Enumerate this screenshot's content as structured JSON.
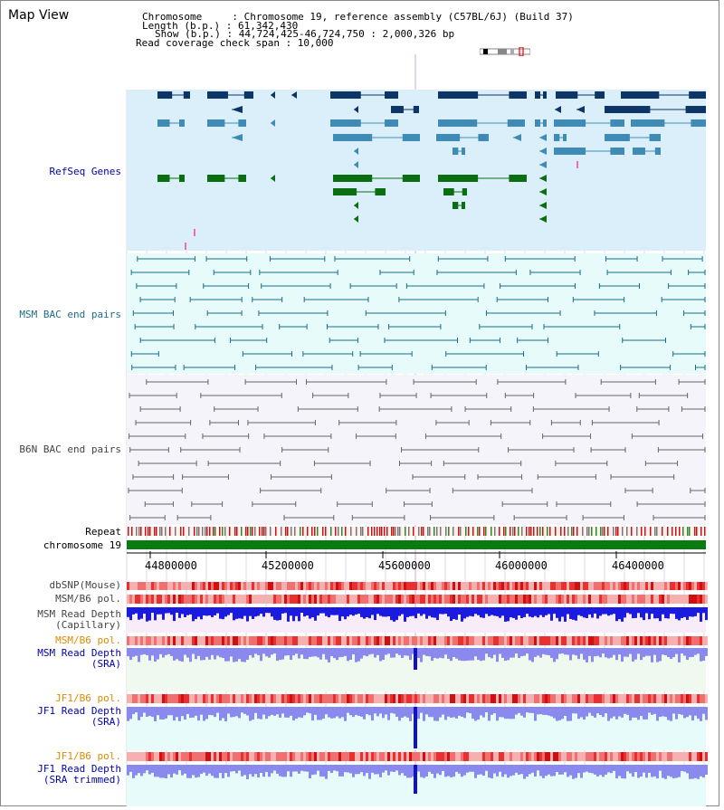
{
  "title": "Map View",
  "info": {
    "chromosome_line": "Chromosome     : Chromosome 19, reference assembly (C57BL/6J) (Build 37)",
    "length_line": "Length (b.p.) : 61,342,430",
    "show_line": "Show (b.p.) : 44,724,425-46,724,750 : 2,000,326 bp",
    "coverage_line": "Read coverage check span : 10,000"
  },
  "tracks": {
    "refseq": "RefSeq Genes",
    "msm_bac": "MSM BAC end pairs",
    "b6n_bac": "B6N BAC end pairs",
    "repeat": "Repeat",
    "chromosome": "chromosome 19",
    "dbsnp": "dbSNP(Mouse)",
    "msm_b6_pol_1": "MSM/B6 pol.",
    "msm_read_depth_cap": "MSM Read Depth\n(Capillary)",
    "msm_b6_pol_2": "MSM/B6 pol.",
    "msm_read_depth_sra": "MSM Read Depth\n(SRA)",
    "jf1_b6_pol_1": "JF1/B6 pol.",
    "jf1_read_depth_sra": "JF1 Read Depth\n(SRA)",
    "jf1_b6_pol_2": "JF1/B6 pol.",
    "jf1_read_depth_trim": "JF1 Read Depth\n(SRA trimmed)"
  },
  "axis": {
    "ticks": [
      "44800000",
      "45200000",
      "45600000",
      "46000000",
      "46400000"
    ]
  },
  "colors": {
    "refseq_bg": "#dbeffa",
    "msm_bg": "#e8fbfb",
    "b6n_bg": "#f4f4fa",
    "gene_dark": "#0d3566",
    "gene_mid": "#3f8bb5",
    "gene_green": "#0b6e12",
    "msm_line": "#1a6e8a",
    "b6n_line": "#666666",
    "chromosome": "#0a7a12",
    "depth_blue": "#1b1be0",
    "depth_light": "#8a8aee",
    "pol_red": "#e83030",
    "label_blue": "#0000b0",
    "label_teal": "#1a6e8a",
    "label_orange": "#e08a00"
  }
}
